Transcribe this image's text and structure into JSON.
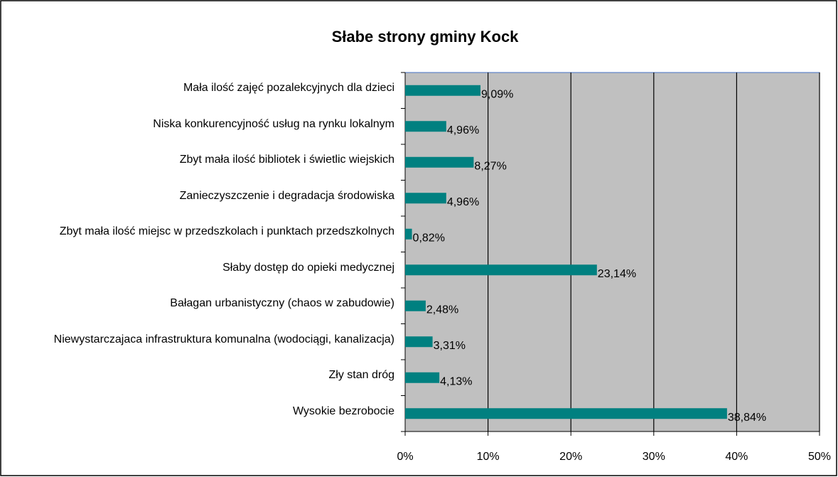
{
  "chart_data": {
    "type": "bar",
    "orientation": "horizontal",
    "title": "Słabe strony gminy Kock",
    "categories": [
      "Mała ilość zajęć pozalekcyjnych dla dzieci",
      "Niska konkurencyjność usług na rynku lokalnym",
      "Zbyt mała ilość bibliotek i świetlic wiejskich",
      "Zanieczyszczenie i degradacja środowiska",
      "Zbyt mała ilość miejsc w przedszkolach i punktach przedszkolnych",
      "Słaby dostęp do opieki medycznej",
      "Bałagan urbanistyczny (chaos w zabudowie)",
      "Niewystarczajaca infrastruktura komunalna (wodociągi, kanalizacja)",
      "Zły stan dróg",
      "Wysokie bezrobocie"
    ],
    "values": [
      9.09,
      4.96,
      8.27,
      4.96,
      0.82,
      23.14,
      2.48,
      3.31,
      4.13,
      38.84
    ],
    "value_labels": [
      "9,09%",
      "4,96%",
      "8,27%",
      "4,96%",
      "0,82%",
      "23,14%",
      "2,48%",
      "3,31%",
      "4,13%",
      "38,84%"
    ],
    "color": "#008080",
    "xlim": [
      0,
      50
    ],
    "xticks": [
      {
        "value": 0,
        "label": "0%"
      },
      {
        "value": 10,
        "label": "10%"
      },
      {
        "value": 20,
        "label": "20%"
      },
      {
        "value": 30,
        "label": "30%"
      },
      {
        "value": 40,
        "label": "40%"
      },
      {
        "value": 50,
        "label": "50%"
      }
    ],
    "grid": true
  }
}
